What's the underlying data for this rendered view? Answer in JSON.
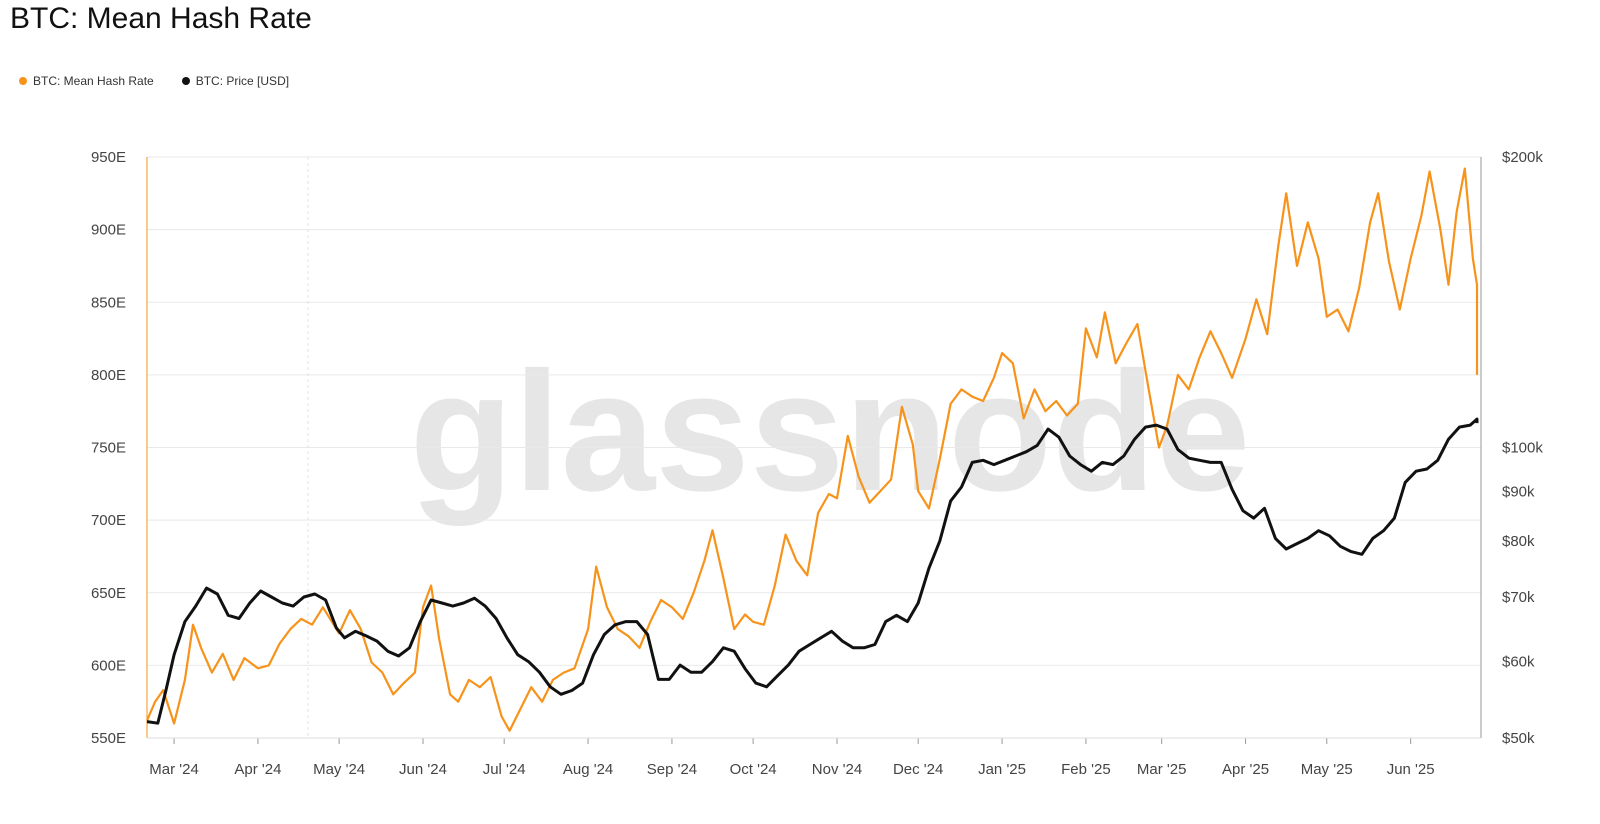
{
  "title": "BTC: Mean Hash Rate",
  "legend": {
    "hash_label": "BTC: Mean Hash Rate",
    "price_label": "BTC: Price [USD]"
  },
  "watermark": "glassnode",
  "colors": {
    "hash": "#f7931a",
    "price": "#111111",
    "grid": "#e9e9e9",
    "watermark": "#e6e6e6"
  },
  "chart_data": {
    "type": "line",
    "title": "BTC: Mean Hash Rate",
    "x_ticks": [
      "Mar '24",
      "Apr '24",
      "May '24",
      "Jun '24",
      "Jul '24",
      "Aug '24",
      "Sep '24",
      "Oct '24",
      "Nov '24",
      "Dec '24",
      "Jan '25",
      "Feb '25",
      "Mar '25",
      "Apr '25",
      "May '25",
      "Jun '25"
    ],
    "x_tick_dates": [
      "2024-03-01",
      "2024-04-01",
      "2024-05-01",
      "2024-06-01",
      "2024-07-01",
      "2024-08-01",
      "2024-09-01",
      "2024-10-01",
      "2024-11-01",
      "2024-12-01",
      "2025-01-01",
      "2025-02-01",
      "2025-03-01",
      "2025-04-01",
      "2025-05-01",
      "2025-06-01"
    ],
    "x_range": [
      "2024-02-20",
      "2025-06-27"
    ],
    "y_left": {
      "label": "",
      "unit": "E",
      "ticks": [
        550,
        600,
        650,
        700,
        750,
        800,
        850,
        900,
        950
      ],
      "tick_labels": [
        "550E",
        "600E",
        "650E",
        "700E",
        "750E",
        "800E",
        "850E",
        "900E",
        "950E"
      ],
      "range": [
        550,
        950
      ]
    },
    "y_right": {
      "label": "",
      "scale": "log",
      "ticks": [
        50000,
        60000,
        70000,
        80000,
        90000,
        100000,
        200000
      ],
      "tick_labels": [
        "$50k",
        "$60k",
        "$70k",
        "$80k",
        "$90k",
        "$100k",
        "$200k"
      ],
      "range": [
        50000,
        200000
      ]
    },
    "legend_position": "top-left",
    "grid": true,
    "series": [
      {
        "name": "BTC: Mean Hash Rate",
        "axis": "left",
        "color": "#f7931a",
        "points": [
          [
            "2024-02-20",
            562
          ],
          [
            "2024-02-23",
            575
          ],
          [
            "2024-02-26",
            583
          ],
          [
            "2024-03-01",
            560
          ],
          [
            "2024-03-05",
            590
          ],
          [
            "2024-03-08",
            628
          ],
          [
            "2024-03-11",
            612
          ],
          [
            "2024-03-15",
            595
          ],
          [
            "2024-03-19",
            608
          ],
          [
            "2024-03-23",
            590
          ],
          [
            "2024-03-27",
            605
          ],
          [
            "2024-04-01",
            598
          ],
          [
            "2024-04-05",
            600
          ],
          [
            "2024-04-09",
            615
          ],
          [
            "2024-04-13",
            625
          ],
          [
            "2024-04-17",
            632
          ],
          [
            "2024-04-21",
            628
          ],
          [
            "2024-04-25",
            640
          ],
          [
            "2024-04-29",
            628
          ],
          [
            "2024-05-01",
            622
          ],
          [
            "2024-05-05",
            638
          ],
          [
            "2024-05-09",
            625
          ],
          [
            "2024-05-13",
            602
          ],
          [
            "2024-05-17",
            595
          ],
          [
            "2024-05-21",
            580
          ],
          [
            "2024-05-25",
            588
          ],
          [
            "2024-05-29",
            595
          ],
          [
            "2024-06-01",
            640
          ],
          [
            "2024-06-04",
            655
          ],
          [
            "2024-06-07",
            618
          ],
          [
            "2024-06-11",
            580
          ],
          [
            "2024-06-14",
            575
          ],
          [
            "2024-06-18",
            590
          ],
          [
            "2024-06-22",
            585
          ],
          [
            "2024-06-26",
            592
          ],
          [
            "2024-06-30",
            565
          ],
          [
            "2024-07-03",
            555
          ],
          [
            "2024-07-07",
            570
          ],
          [
            "2024-07-11",
            585
          ],
          [
            "2024-07-15",
            575
          ],
          [
            "2024-07-19",
            590
          ],
          [
            "2024-07-23",
            595
          ],
          [
            "2024-07-27",
            598
          ],
          [
            "2024-08-01",
            625
          ],
          [
            "2024-08-04",
            668
          ],
          [
            "2024-08-08",
            640
          ],
          [
            "2024-08-12",
            625
          ],
          [
            "2024-08-16",
            620
          ],
          [
            "2024-08-20",
            612
          ],
          [
            "2024-08-24",
            630
          ],
          [
            "2024-08-28",
            645
          ],
          [
            "2024-09-01",
            640
          ],
          [
            "2024-09-05",
            632
          ],
          [
            "2024-09-09",
            650
          ],
          [
            "2024-09-13",
            672
          ],
          [
            "2024-09-16",
            693
          ],
          [
            "2024-09-20",
            660
          ],
          [
            "2024-09-24",
            625
          ],
          [
            "2024-09-28",
            635
          ],
          [
            "2024-10-01",
            630
          ],
          [
            "2024-10-05",
            628
          ],
          [
            "2024-10-09",
            655
          ],
          [
            "2024-10-13",
            690
          ],
          [
            "2024-10-17",
            672
          ],
          [
            "2024-10-21",
            662
          ],
          [
            "2024-10-25",
            705
          ],
          [
            "2024-10-29",
            718
          ],
          [
            "2024-11-01",
            715
          ],
          [
            "2024-11-05",
            758
          ],
          [
            "2024-11-09",
            730
          ],
          [
            "2024-11-13",
            712
          ],
          [
            "2024-11-17",
            720
          ],
          [
            "2024-11-21",
            728
          ],
          [
            "2024-11-25",
            778
          ],
          [
            "2024-11-29",
            752
          ],
          [
            "2024-12-01",
            720
          ],
          [
            "2024-12-05",
            708
          ],
          [
            "2024-12-09",
            742
          ],
          [
            "2024-12-13",
            780
          ],
          [
            "2024-12-17",
            790
          ],
          [
            "2024-12-21",
            785
          ],
          [
            "2024-12-25",
            782
          ],
          [
            "2024-12-29",
            798
          ],
          [
            "2025-01-01",
            815
          ],
          [
            "2025-01-05",
            808
          ],
          [
            "2025-01-09",
            770
          ],
          [
            "2025-01-13",
            790
          ],
          [
            "2025-01-17",
            775
          ],
          [
            "2025-01-21",
            782
          ],
          [
            "2025-01-25",
            772
          ],
          [
            "2025-01-29",
            780
          ],
          [
            "2025-02-01",
            832
          ],
          [
            "2025-02-05",
            812
          ],
          [
            "2025-02-08",
            843
          ],
          [
            "2025-02-12",
            808
          ],
          [
            "2025-02-16",
            822
          ],
          [
            "2025-02-20",
            835
          ],
          [
            "2025-02-24",
            792
          ],
          [
            "2025-02-28",
            750
          ],
          [
            "2025-03-03",
            765
          ],
          [
            "2025-03-07",
            800
          ],
          [
            "2025-03-11",
            790
          ],
          [
            "2025-03-15",
            812
          ],
          [
            "2025-03-19",
            830
          ],
          [
            "2025-03-23",
            815
          ],
          [
            "2025-03-27",
            798
          ],
          [
            "2025-04-01",
            825
          ],
          [
            "2025-04-05",
            852
          ],
          [
            "2025-04-09",
            828
          ],
          [
            "2025-04-13",
            888
          ],
          [
            "2025-04-16",
            925
          ],
          [
            "2025-04-20",
            875
          ],
          [
            "2025-04-24",
            905
          ],
          [
            "2025-04-28",
            880
          ],
          [
            "2025-05-01",
            840
          ],
          [
            "2025-05-05",
            845
          ],
          [
            "2025-05-09",
            830
          ],
          [
            "2025-05-13",
            860
          ],
          [
            "2025-05-17",
            905
          ],
          [
            "2025-05-20",
            925
          ],
          [
            "2025-05-24",
            878
          ],
          [
            "2025-05-28",
            845
          ],
          [
            "2025-06-01",
            880
          ],
          [
            "2025-06-05",
            910
          ],
          [
            "2025-06-08",
            940
          ],
          [
            "2025-06-12",
            900
          ],
          [
            "2025-06-15",
            862
          ],
          [
            "2025-06-18",
            912
          ],
          [
            "2025-06-21",
            942
          ],
          [
            "2025-06-24",
            880
          ],
          [
            "2025-06-27",
            862
          ],
          [
            "2025-06-30",
            802
          ],
          [
            "2025-07-03",
            815
          ],
          [
            "2025-07-05",
            800
          ]
        ]
      },
      {
        "name": "BTC: Price [USD]",
        "axis": "right",
        "color": "#111111",
        "points": [
          [
            "2024-02-20",
            52000
          ],
          [
            "2024-02-24",
            51800
          ],
          [
            "2024-02-27",
            56000
          ],
          [
            "2024-03-01",
            61000
          ],
          [
            "2024-03-05",
            66000
          ],
          [
            "2024-03-09",
            68500
          ],
          [
            "2024-03-13",
            71500
          ],
          [
            "2024-03-17",
            70500
          ],
          [
            "2024-03-21",
            67000
          ],
          [
            "2024-03-25",
            66500
          ],
          [
            "2024-03-29",
            69000
          ],
          [
            "2024-04-02",
            71000
          ],
          [
            "2024-04-06",
            70000
          ],
          [
            "2024-04-10",
            69000
          ],
          [
            "2024-04-14",
            68500
          ],
          [
            "2024-04-18",
            70000
          ],
          [
            "2024-04-22",
            70500
          ],
          [
            "2024-04-26",
            69500
          ],
          [
            "2024-04-30",
            65000
          ],
          [
            "2024-05-03",
            63500
          ],
          [
            "2024-05-07",
            64500
          ],
          [
            "2024-05-11",
            63800
          ],
          [
            "2024-05-15",
            63000
          ],
          [
            "2024-05-19",
            61500
          ],
          [
            "2024-05-23",
            60800
          ],
          [
            "2024-05-27",
            62000
          ],
          [
            "2024-05-31",
            66000
          ],
          [
            "2024-06-04",
            69500
          ],
          [
            "2024-06-08",
            69000
          ],
          [
            "2024-06-12",
            68500
          ],
          [
            "2024-06-16",
            69000
          ],
          [
            "2024-06-20",
            69800
          ],
          [
            "2024-06-24",
            68500
          ],
          [
            "2024-06-28",
            66500
          ],
          [
            "2024-07-02",
            63500
          ],
          [
            "2024-07-06",
            61000
          ],
          [
            "2024-07-10",
            60000
          ],
          [
            "2024-07-14",
            58500
          ],
          [
            "2024-07-18",
            56500
          ],
          [
            "2024-07-22",
            55500
          ],
          [
            "2024-07-26",
            56000
          ],
          [
            "2024-07-30",
            57000
          ],
          [
            "2024-08-03",
            61000
          ],
          [
            "2024-08-07",
            64000
          ],
          [
            "2024-08-11",
            65500
          ],
          [
            "2024-08-15",
            66000
          ],
          [
            "2024-08-19",
            66000
          ],
          [
            "2024-08-23",
            64000
          ],
          [
            "2024-08-27",
            57500
          ],
          [
            "2024-08-31",
            57500
          ],
          [
            "2024-09-04",
            59500
          ],
          [
            "2024-09-08",
            58500
          ],
          [
            "2024-09-12",
            58500
          ],
          [
            "2024-09-16",
            60000
          ],
          [
            "2024-09-20",
            62000
          ],
          [
            "2024-09-24",
            61500
          ],
          [
            "2024-09-28",
            59000
          ],
          [
            "2024-10-02",
            57000
          ],
          [
            "2024-10-06",
            56500
          ],
          [
            "2024-10-10",
            58000
          ],
          [
            "2024-10-14",
            59500
          ],
          [
            "2024-10-18",
            61500
          ],
          [
            "2024-10-22",
            62500
          ],
          [
            "2024-10-26",
            63500
          ],
          [
            "2024-10-30",
            64500
          ],
          [
            "2024-11-03",
            63000
          ],
          [
            "2024-11-07",
            62000
          ],
          [
            "2024-11-11",
            62000
          ],
          [
            "2024-11-15",
            62500
          ],
          [
            "2024-11-19",
            66000
          ],
          [
            "2024-11-23",
            67000
          ],
          [
            "2024-11-27",
            66000
          ],
          [
            "2024-12-01",
            69000
          ],
          [
            "2024-12-05",
            75000
          ],
          [
            "2024-12-09",
            80000
          ],
          [
            "2024-12-13",
            88000
          ],
          [
            "2024-12-17",
            91000
          ],
          [
            "2024-12-21",
            96500
          ],
          [
            "2024-12-25",
            97000
          ],
          [
            "2024-12-29",
            96000
          ],
          [
            "2025-01-02",
            97000
          ],
          [
            "2025-01-06",
            98000
          ],
          [
            "2025-01-10",
            99000
          ],
          [
            "2025-01-14",
            100500
          ],
          [
            "2025-01-18",
            104500
          ],
          [
            "2025-01-22",
            102500
          ],
          [
            "2025-01-26",
            98000
          ],
          [
            "2025-01-30",
            96000
          ],
          [
            "2025-02-03",
            94500
          ],
          [
            "2025-02-07",
            96500
          ],
          [
            "2025-02-11",
            96000
          ],
          [
            "2025-02-15",
            98000
          ],
          [
            "2025-02-19",
            102000
          ],
          [
            "2025-02-23",
            105000
          ],
          [
            "2025-02-27",
            105500
          ],
          [
            "2025-03-03",
            104500
          ],
          [
            "2025-03-07",
            99500
          ],
          [
            "2025-03-11",
            97500
          ],
          [
            "2025-03-15",
            97000
          ],
          [
            "2025-03-19",
            96500
          ],
          [
            "2025-03-23",
            96500
          ],
          [
            "2025-03-27",
            90500
          ],
          [
            "2025-03-31",
            86000
          ],
          [
            "2025-04-04",
            84500
          ],
          [
            "2025-04-08",
            86500
          ],
          [
            "2025-04-12",
            80500
          ],
          [
            "2025-04-16",
            78500
          ],
          [
            "2025-04-20",
            79500
          ],
          [
            "2025-04-24",
            80500
          ],
          [
            "2025-04-28",
            82000
          ],
          [
            "2025-05-02",
            81000
          ],
          [
            "2025-05-06",
            79000
          ],
          [
            "2025-05-10",
            78000
          ],
          [
            "2025-05-14",
            77500
          ],
          [
            "2025-05-18",
            80500
          ],
          [
            "2025-05-22",
            82000
          ],
          [
            "2025-05-26",
            84500
          ],
          [
            "2025-05-30",
            92000
          ],
          [
            "2025-06-03",
            94500
          ],
          [
            "2025-06-07",
            95000
          ],
          [
            "2025-06-11",
            97000
          ],
          [
            "2025-06-15",
            102000
          ],
          [
            "2025-06-19",
            105000
          ],
          [
            "2025-06-23",
            105500
          ],
          [
            "2025-06-27",
            107000
          ],
          [
            "2025-07-01",
            106500
          ],
          [
            "2025-07-05",
            106000
          ]
        ]
      }
    ]
  }
}
